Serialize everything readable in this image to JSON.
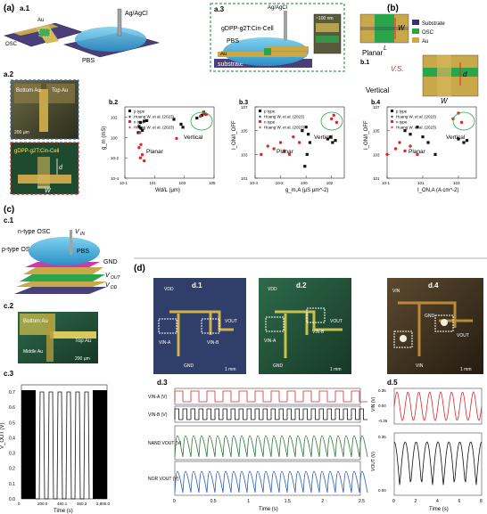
{
  "panels": {
    "a": {
      "label": "(a)",
      "a1": "a.1",
      "a2": "a.2",
      "a3": "a.3",
      "au": "Au",
      "osc": "OSC",
      "agagcl": "Ag/AgCl",
      "pbs": "PBS",
      "bottom_au": "Bottom Au",
      "top_au": "Top Au",
      "scale_200": "200 μm",
      "material": "gDPP-g2T:Cin-Cell",
      "d": "d",
      "w": "W",
      "nm100": "~100 nm",
      "substrate": "substrate"
    },
    "b": {
      "label": "(b)",
      "b1": "b.1",
      "legend": [
        "Substrate",
        "OSC",
        "Au"
      ],
      "legend_colors": [
        "#3b2f6b",
        "#2aa54a",
        "#c9a84a"
      ],
      "planar": "Planar",
      "vs": "V.S.",
      "vertical": "Vertical",
      "l": "L",
      "w": "W",
      "d": "d",
      "b2": "b.2",
      "b3": "b.3",
      "b4": "b.4",
      "legend_entries": [
        "p type",
        "Huang W. et al. (2023)",
        "n type",
        "Huang W. et al. (2023)"
      ]
    },
    "c": {
      "label": "(c)",
      "c1": "c.1",
      "c2": "c.2",
      "c3": "c.3",
      "ntype": "n-type OSC",
      "ptype": "p-type OSC",
      "vin": "V",
      "vin_sub": "IN",
      "pbs": "PBS",
      "gnd": "GND",
      "vout": "V",
      "vout_sub": "OUT",
      "vdd": "V",
      "vdd_sub": "DD",
      "bottom_au": "Bottom Au",
      "top_au": "Top Au",
      "middle_au": "Middle Au",
      "scale_200": "200 μm",
      "ylabel": "V_OUT (V)",
      "xlabel": "Time (s)",
      "yticks": [
        "0.0",
        "0.1",
        "0.2",
        "0.3",
        "0.4",
        "0.5",
        "0.6",
        "0.7"
      ],
      "xticks": [
        "0",
        "200.0",
        "460.1",
        "460.3",
        "2,800.0"
      ]
    },
    "d": {
      "label": "(d)",
      "d1": "d.1",
      "d2": "d.2",
      "d4": "d.4",
      "d3": "d.3",
      "d5": "d.5",
      "vdd": "VDD",
      "vout": "VOUT",
      "gnd": "GND",
      "vina": "VIN-A",
      "vinb": "VIN-B",
      "vin": "VIN",
      "scale_1mm": "1 mm",
      "row_labels": [
        "VIN-A (V)",
        "VIN-B (V)",
        "NAND VOUT (V)",
        "NOR VOUT (V)"
      ],
      "xlabel": "Time (s)",
      "xticks_d3": [
        "0",
        "0.5",
        "1",
        "1.5",
        "2",
        "2.5"
      ],
      "xticks_d5": [
        "0",
        "2",
        "4",
        "6",
        "8"
      ],
      "d5_vin": "VIN (V)",
      "d5_vout": "VOUT (V)",
      "d5_yticks_top": [
        "0.35",
        "0.00",
        "-0.35"
      ],
      "d5_yticks_bot": [
        "0.35",
        "0.00"
      ]
    }
  },
  "chart_data": [
    {
      "id": "b.2",
      "type": "scatter",
      "xlabel": "Wd/L (μm)",
      "ylabel": "g_m (mS)",
      "xlim": [
        0.1,
        100000
      ],
      "ylim": [
        0.0001,
        1000
      ],
      "log_x": true,
      "log_y": true,
      "series": [
        {
          "name": "p type",
          "x": [
            0.9,
            1.1,
            1.5,
            2,
            3,
            0.8,
            1.2,
            200,
            600,
            800,
            7000,
            15000,
            20000,
            25000
          ],
          "y": [
            12,
            30,
            5,
            40,
            45,
            3,
            8,
            60,
            20,
            10,
            80,
            150,
            300,
            200
          ]
        },
        {
          "name": "n type",
          "x": [
            1,
            1.2,
            1.5,
            2,
            0.9,
            1.1,
            300,
            12000,
            20000,
            30000
          ],
          "y": [
            3,
            0.2,
            0.02,
            0.005,
            0.1,
            0.01,
            0.8,
            120,
            250,
            180
          ]
        }
      ],
      "annotations": [
        "Planar",
        "Vertical"
      ]
    },
    {
      "id": "b.3",
      "type": "scatter",
      "xlabel": "g_m,A (μS μm^-2)",
      "ylabel": "I_ON/I_OFF",
      "xlim": [
        0.0001,
        1000
      ],
      "ylim": [
        10,
        10000000
      ],
      "log_x": true,
      "log_y": true,
      "series": [
        {
          "name": "p type",
          "x": [
            0.5,
            1,
            1.5,
            2,
            1.2,
            0.8,
            50,
            80,
            120,
            200
          ],
          "y": [
            100000,
            200000,
            50000,
            10000,
            1000,
            100,
            20000,
            30000,
            10000,
            15000
          ]
        },
        {
          "name": "n type",
          "x": [
            0.0003,
            0.001,
            0.003,
            0.01,
            0.02,
            0.05,
            0.1,
            0.3,
            100,
            150,
            250
          ],
          "y": [
            1000,
            5000,
            3000,
            10000,
            2000,
            1000,
            30000,
            10000,
            1000000,
            2000000,
            500000
          ]
        }
      ],
      "annotations": [
        "Vertical",
        "Planar"
      ]
    },
    {
      "id": "b.4",
      "type": "scatter",
      "xlabel": "I_ON,A (A cm^-2)",
      "ylabel": "I_ON/I_OFF",
      "xlim": [
        0.1,
        10000
      ],
      "ylim": [
        10,
        10000000
      ],
      "log_x": true,
      "log_y": true,
      "series": [
        {
          "name": "p type",
          "x": [
            1,
            2,
            5,
            10,
            20,
            50,
            1000,
            2000,
            3000
          ],
          "y": [
            100000,
            50000,
            200000,
            30000,
            10000,
            1000,
            20000,
            10000,
            15000
          ]
        },
        {
          "name": "n type",
          "x": [
            0.1,
            0.3,
            0.5,
            1,
            2,
            5,
            500,
            1000,
            1500
          ],
          "y": [
            1000,
            3000,
            10000,
            2000,
            5000,
            1000,
            1000000,
            3000000,
            500000
          ]
        }
      ],
      "annotations": [
        "Vertical",
        "Planar"
      ]
    }
  ]
}
